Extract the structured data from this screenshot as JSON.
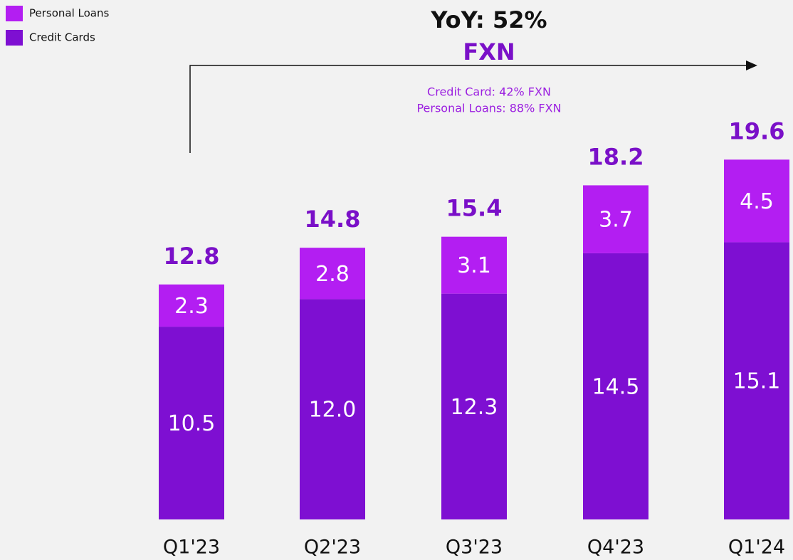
{
  "chart_data": {
    "type": "stacked_bar",
    "title": "YoY: 52%",
    "subtitle": "FXN",
    "annotations": [
      "Credit Card: 42% FXN",
      "Personal Loans: 88% FXN"
    ],
    "categories": [
      "Q1'23",
      "Q2'23",
      "Q3'23",
      "Q4'23",
      "Q1'24"
    ],
    "series": [
      {
        "name": "Credit Cards",
        "color": "#7e0fd2",
        "values": [
          10.5,
          12.0,
          12.3,
          14.5,
          15.1
        ],
        "value_labels": [
          "10.5",
          "12.0",
          "12.3",
          "14.5",
          "15.1"
        ]
      },
      {
        "name": "Personal Loans",
        "color": "#b31ef2",
        "values": [
          2.3,
          2.8,
          3.1,
          3.7,
          4.5
        ]
      }
    ],
    "totals": [
      12.8,
      14.8,
      15.4,
      18.2,
      19.6
    ],
    "legend": "top-left"
  }
}
